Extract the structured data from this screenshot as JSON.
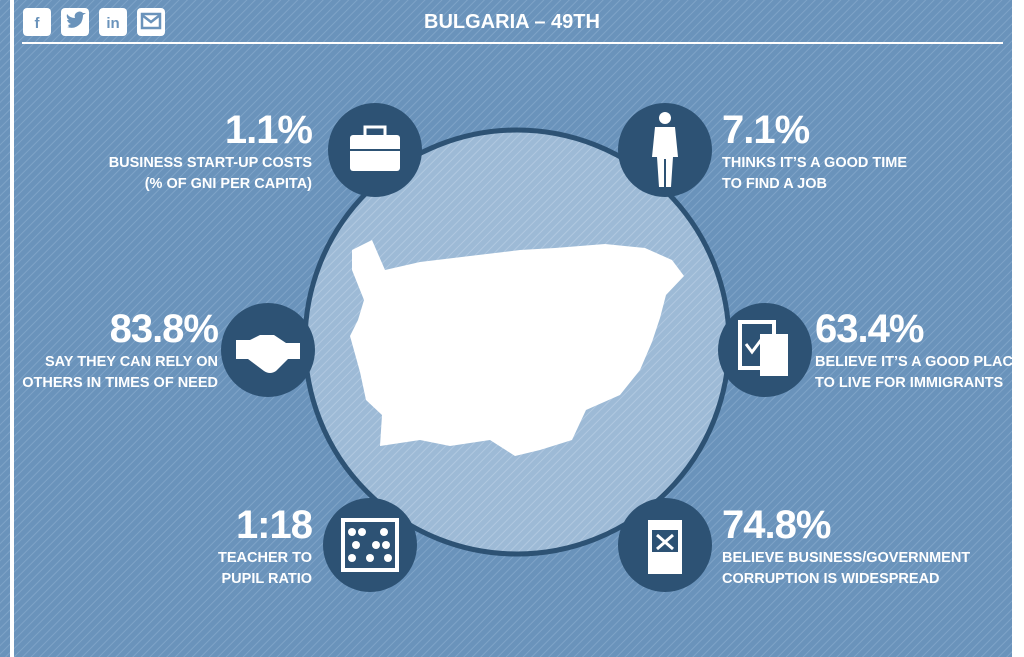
{
  "header": {
    "title": "BULGARIA – 49TH",
    "social": {
      "facebook": "f",
      "linkedin": "in"
    }
  },
  "stats": [
    {
      "value": "1.1%",
      "lines": [
        "BUSINESS START-UP COSTS",
        "(% OF GNI PER CAPITA)"
      ]
    },
    {
      "value": "7.1%",
      "lines": [
        "THINKS IT’S A GOOD TIME",
        "TO FIND A JOB"
      ]
    },
    {
      "value": "83.8%",
      "lines": [
        "SAY THEY CAN RELY ON",
        "OTHERS IN TIMES OF NEED"
      ]
    },
    {
      "value": "63.4%",
      "lines": [
        "BELIEVE IT’S A GOOD PLACE",
        "TO LIVE FOR IMMIGRANTS"
      ]
    },
    {
      "value": "1:18",
      "lines": [
        "TEACHER TO",
        "PUPIL RATIO"
      ]
    },
    {
      "value": "74.8%",
      "lines": [
        "BELIEVE BUSINESS/GOVERNMENT",
        "CORRUPTION IS WIDESPREAD"
      ]
    }
  ]
}
